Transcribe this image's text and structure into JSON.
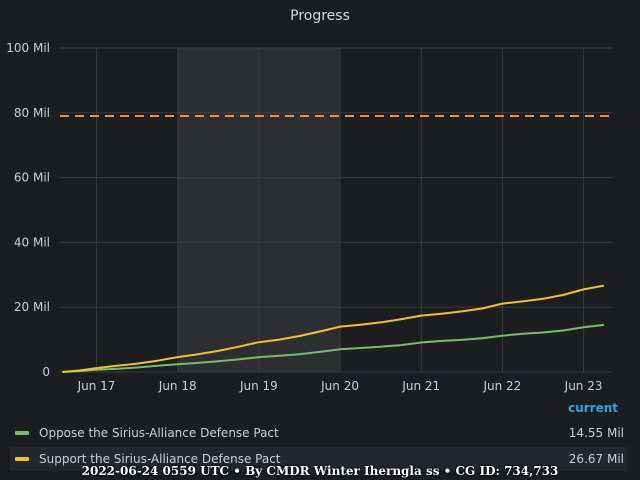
{
  "panel": {
    "title": "Progress"
  },
  "chart_data": {
    "type": "line",
    "title": "Progress",
    "xlabel": "",
    "ylabel": "",
    "ylim": [
      0,
      100
    ],
    "y_tick_values": [
      0,
      20,
      40,
      60,
      80,
      100
    ],
    "y_tick_labels": [
      "0",
      "20 Mil",
      "40 Mil",
      "60 Mil",
      "80 Mil",
      "100 Mil"
    ],
    "x_tick_values": [
      1,
      2,
      3,
      4,
      5,
      6,
      7
    ],
    "x_tick_labels": [
      "Jun 17",
      "Jun 18",
      "Jun 19",
      "Jun 20",
      "Jun 21",
      "Jun 22",
      "Jun 23"
    ],
    "xlim": [
      0.55,
      7.35
    ],
    "highlight_band": [
      2,
      4
    ],
    "threshold": {
      "value": 79,
      "style": "dashed",
      "color": "#ef8f3a"
    },
    "grid": true,
    "legend_placement": "bottom",
    "series": [
      {
        "name": "Oppose the Sirius-Alliance Defense Pact",
        "color": "#73bf69",
        "current": "14.55 Mil",
        "x": [
          0.58,
          0.8,
          1.0,
          1.25,
          1.5,
          1.75,
          2.0,
          2.25,
          2.5,
          2.75,
          3.0,
          3.25,
          3.5,
          3.75,
          4.0,
          4.25,
          4.5,
          4.75,
          5.0,
          5.25,
          5.5,
          5.75,
          6.0,
          6.25,
          6.5,
          6.75,
          7.0,
          7.25
        ],
        "y": [
          0,
          0.3,
          0.7,
          1.0,
          1.4,
          1.9,
          2.4,
          2.8,
          3.3,
          3.9,
          4.6,
          5.0,
          5.5,
          6.2,
          7.0,
          7.4,
          7.8,
          8.3,
          9.1,
          9.6,
          9.9,
          10.4,
          11.2,
          11.8,
          12.2,
          12.8,
          13.8,
          14.55
        ]
      },
      {
        "name": "Support the Sirius-Alliance Defense Pact",
        "color": "#f2c037",
        "current": "26.67 Mil",
        "x": [
          0.58,
          0.8,
          1.0,
          1.25,
          1.5,
          1.75,
          2.0,
          2.25,
          2.5,
          2.75,
          3.0,
          3.25,
          3.5,
          3.75,
          4.0,
          4.25,
          4.5,
          4.75,
          5.0,
          5.25,
          5.5,
          5.75,
          6.0,
          6.25,
          6.5,
          6.75,
          7.0,
          7.25
        ],
        "y": [
          0,
          0.5,
          1.2,
          1.9,
          2.6,
          3.5,
          4.6,
          5.5,
          6.5,
          7.8,
          9.2,
          10.0,
          11.1,
          12.5,
          14.0,
          14.6,
          15.3,
          16.3,
          17.4,
          18.0,
          18.7,
          19.6,
          21.1,
          21.8,
          22.6,
          23.8,
          25.5,
          26.67
        ]
      }
    ]
  },
  "legend": {
    "header": "current"
  },
  "footer": {
    "text": "2022-06-24 0559 UTC • By CMDR Winter Iherngla ss • CG ID: 734,733"
  }
}
